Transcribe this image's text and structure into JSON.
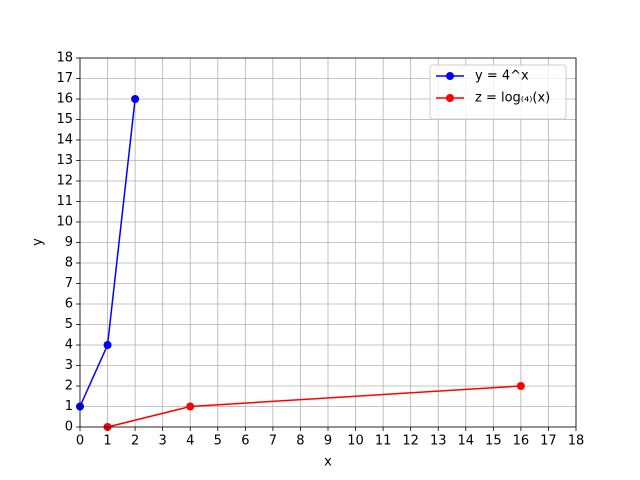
{
  "chart_data": {
    "type": "line",
    "x_label": "x",
    "y_label": "y",
    "xlim": [
      0,
      18
    ],
    "ylim": [
      0,
      18
    ],
    "xticks": [
      0,
      1,
      2,
      3,
      4,
      5,
      6,
      7,
      8,
      9,
      10,
      11,
      12,
      13,
      14,
      15,
      16,
      17,
      18
    ],
    "yticks": [
      0,
      1,
      2,
      3,
      4,
      5,
      6,
      7,
      8,
      9,
      10,
      11,
      12,
      13,
      14,
      15,
      16,
      17,
      18
    ],
    "grid": true,
    "legend": "upper right",
    "series": [
      {
        "name": "y = 4^x",
        "color": "#0000ff",
        "x": [
          0,
          1,
          2
        ],
        "values": [
          1,
          4,
          16
        ]
      },
      {
        "name": "z = log₍₄₎(x)",
        "color": "#ff0000",
        "x": [
          1,
          4,
          16
        ],
        "values": [
          0,
          1,
          2
        ]
      }
    ]
  }
}
